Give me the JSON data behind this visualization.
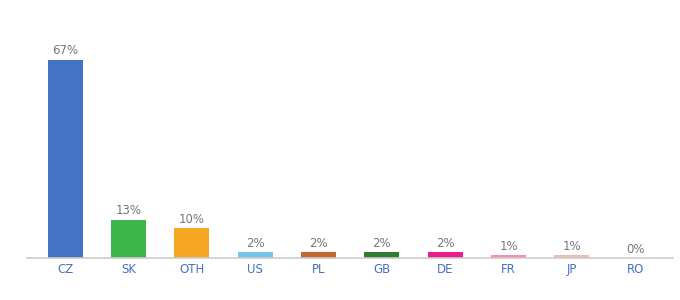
{
  "categories": [
    "CZ",
    "SK",
    "OTH",
    "US",
    "PL",
    "GB",
    "DE",
    "FR",
    "JP",
    "RO"
  ],
  "values": [
    67,
    13,
    10,
    2,
    2,
    2,
    2,
    1,
    1,
    0
  ],
  "labels": [
    "67%",
    "13%",
    "10%",
    "2%",
    "2%",
    "2%",
    "2%",
    "1%",
    "1%",
    "0%"
  ],
  "bar_colors": [
    "#4472c4",
    "#3cb54a",
    "#f5a623",
    "#74c6e8",
    "#c1692c",
    "#2e7d32",
    "#e91e8c",
    "#f48fb1",
    "#f4b8b0",
    "#f5f5f5"
  ],
  "background_color": "#ffffff",
  "ylim": [
    0,
    75
  ],
  "label_fontsize": 8.5,
  "tick_fontsize": 8.5,
  "label_color": "#777777",
  "tick_color": "#4472c4",
  "spine_color": "#cccccc"
}
